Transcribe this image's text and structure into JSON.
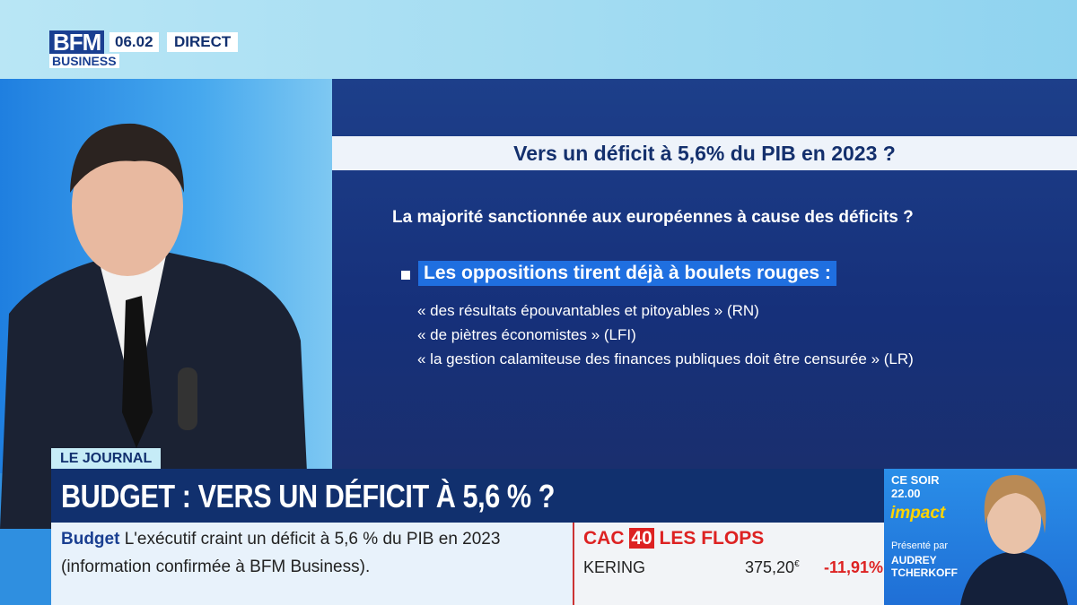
{
  "header": {
    "logo_top": "BFM",
    "logo_bottom": "BUSINESS",
    "time": "06.02",
    "live": "DIRECT"
  },
  "slide": {
    "title": "Vers un déficit à 5,6% du PIB en 2023 ?",
    "question": "La majorité sanctionnée aux européennes à cause des déficits ?",
    "bullet": "Les oppositions tirent déjà à boulets rouges :",
    "quotes": [
      "« des résultats épouvantables et pitoyables » (RN)",
      "« de piètres économistes » (LFI)",
      "« la gestion calamiteuse des finances publiques doit être censurée » (LR)"
    ]
  },
  "banner": {
    "label": "LE JOURNAL",
    "headline": "BUDGET : VERS UN DÉFICIT À 5,6 % ?"
  },
  "ticker": {
    "topic": "Budget",
    "line1": "L'exécutif craint un déficit à 5,6 % du PIB en 2023",
    "line2": "(information confirmée à BFM Business)."
  },
  "market": {
    "index": "CAC",
    "index_number": "40",
    "section": "LES FLOPS",
    "stock": "KERING",
    "price": "375,20",
    "currency": "€",
    "change": "-11,91%"
  },
  "promo": {
    "when": "CE SOIR",
    "time": "22.00",
    "show": "impact",
    "presented_by": "Présenté par",
    "host": "AUDREY TCHERKOFF"
  }
}
